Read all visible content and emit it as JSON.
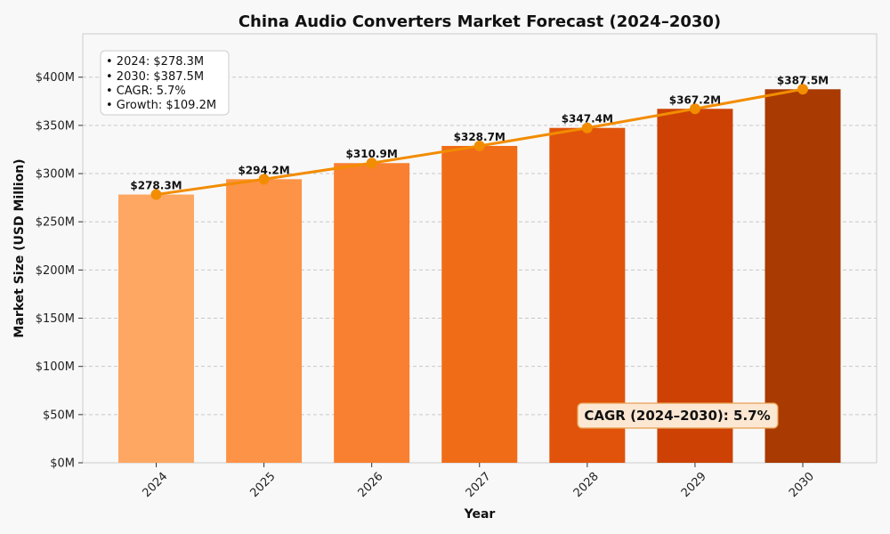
{
  "chart_data": {
    "type": "bar",
    "title": "China Audio Converters Market Forecast (2024–2030)",
    "xlabel": "Year",
    "ylabel": "Market Size (USD Million)",
    "categories": [
      "2024",
      "2025",
      "2026",
      "2027",
      "2028",
      "2029",
      "2030"
    ],
    "values": [
      278.3,
      294.2,
      310.9,
      328.7,
      347.4,
      367.2,
      387.5
    ],
    "value_labels": [
      "$278.3M",
      "$294.2M",
      "$310.9M",
      "$328.7M",
      "$347.4M",
      "$367.2M",
      "$387.5M"
    ],
    "ylim": [
      0,
      445
    ],
    "yticks": [
      0,
      50,
      100,
      150,
      200,
      250,
      300,
      350,
      400
    ],
    "ytick_labels": [
      "$0M",
      "$50M",
      "$100M",
      "$150M",
      "$200M",
      "$250M",
      "$300M",
      "$350M",
      "$400M"
    ],
    "grid": true,
    "bar_colors": [
      "#fda762",
      "#fd9346",
      "#f98030",
      "#f06c17",
      "#e1530a",
      "#cd4204",
      "#a83a02"
    ],
    "trend_line_color": "#f28c00",
    "stats_box": {
      "position": "top-left",
      "lines": [
        "• 2024: $278.3M",
        "• 2030: $387.5M",
        "• CAGR: 5.7%",
        "• Growth: $109.2M"
      ]
    },
    "annotation": {
      "text": "CAGR (2024–2030): 5.7%",
      "position": "bottom-right",
      "background": "#fbe7d2",
      "border": "#e8a050"
    }
  }
}
